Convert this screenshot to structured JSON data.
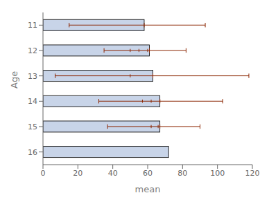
{
  "chart_data": {
    "type": "bar",
    "orientation": "horizontal",
    "categories": [
      "11",
      "12",
      "13",
      "14",
      "15",
      "16"
    ],
    "values": [
      58,
      61,
      63,
      67,
      67,
      72
    ],
    "color": "#c8d4e8",
    "error_bars": {
      "lower": [
        15,
        35,
        7,
        32,
        37,
        null
      ],
      "upper": [
        93,
        82,
        118,
        103,
        90,
        null
      ],
      "centers": [
        58,
        61,
        63,
        67,
        67,
        null
      ],
      "inner_ticks": [
        [],
        [
          50,
          55,
          60
        ],
        [
          50
        ],
        [
          57,
          62,
          67
        ],
        [
          62,
          66
        ],
        []
      ],
      "color": "#8b2500"
    },
    "xlabel": "mean",
    "ylabel": "Age",
    "xlim": [
      0,
      120
    ],
    "xticks": [
      0,
      20,
      40,
      60,
      80,
      100,
      120
    ],
    "grid": false
  }
}
